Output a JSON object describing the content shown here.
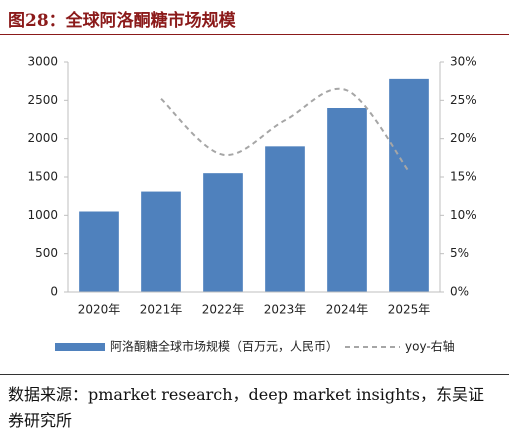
{
  "chart_data": {
    "type": "bar",
    "title": "图28：全球阿洛酮糖市场规模",
    "categories": [
      "2020年",
      "2021年",
      "2022年",
      "2023年",
      "2024年",
      "2025年"
    ],
    "series": [
      {
        "name": "阿洛酮糖全球市场规模（百万元，人民币）",
        "type": "bar",
        "color": "#4f81bd",
        "values": [
          1050,
          1310,
          1550,
          1900,
          2400,
          2780
        ]
      },
      {
        "name": "yoy-右轴",
        "type": "line",
        "axis": "y2",
        "color": "#a6a6a6",
        "dashed": true,
        "values": [
          null,
          25.2,
          17.9,
          22.4,
          26.3,
          15.7
        ]
      }
    ],
    "ylim": [
      0,
      3000
    ],
    "yticks": [
      0,
      500,
      1000,
      1500,
      2000,
      2500,
      3000
    ],
    "y2lim": [
      0,
      30
    ],
    "y2ticks": [
      {
        "value": 0,
        "label": "0%"
      },
      {
        "value": 5,
        "label": "5%"
      },
      {
        "value": 10,
        "label": "10%"
      },
      {
        "value": 15,
        "label": "15%"
      },
      {
        "value": 20,
        "label": "20%"
      },
      {
        "value": 25,
        "label": "25%"
      },
      {
        "value": 30,
        "label": "30%"
      }
    ],
    "grid": false,
    "legend": "bottom",
    "source": "数据来源：pmarket research，deep market insights，东吴证券研究所"
  }
}
